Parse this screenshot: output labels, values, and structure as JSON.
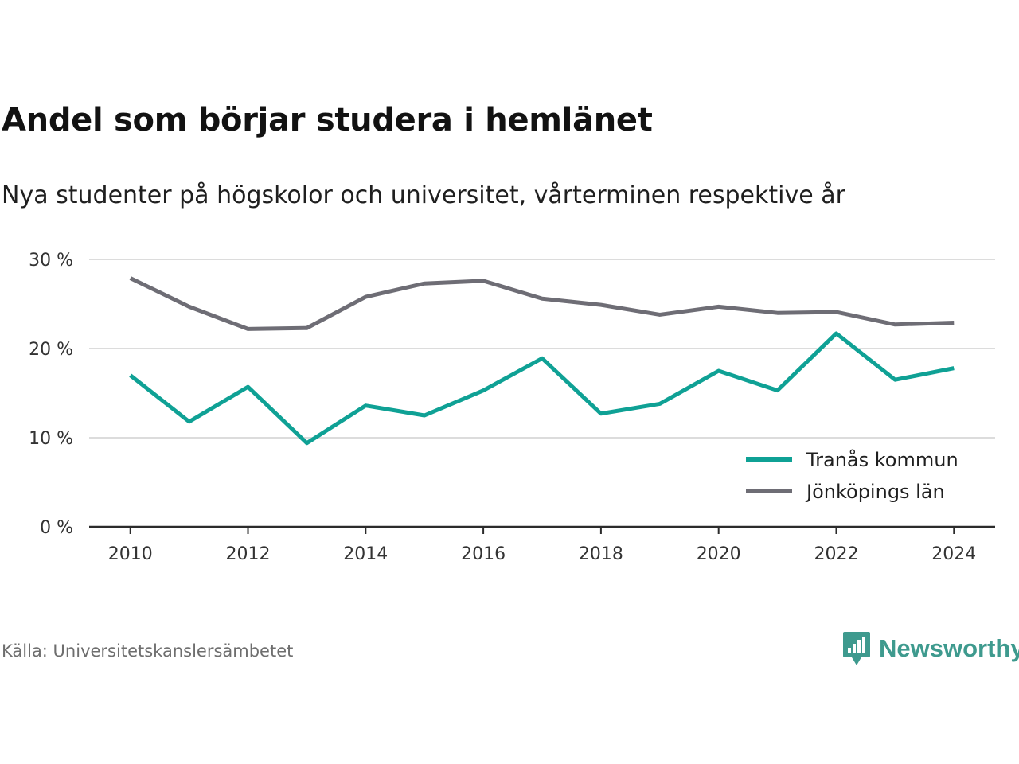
{
  "title": "Andel som börjar studera i hemlänet",
  "subtitle": "Nya studenter på högskolor och universitet, vårterminen respektive år",
  "source": "Källa: Universitetskanslersämbetet",
  "brand": {
    "name": "Newsworthy",
    "logo_icon": "newsworthy-bar-chart-bubble-icon",
    "color": "#3e9a8e"
  },
  "chart_data": {
    "type": "line",
    "x": [
      2010,
      2011,
      2012,
      2013,
      2014,
      2015,
      2016,
      2017,
      2018,
      2019,
      2020,
      2021,
      2022,
      2023,
      2024
    ],
    "x_ticks": [
      "2010",
      "2012",
      "2014",
      "2016",
      "2018",
      "2020",
      "2022",
      "2024"
    ],
    "xlim": [
      2009.3,
      2024.7
    ],
    "y_ticks": [
      "0 %",
      "10 %",
      "20 %",
      "30 %"
    ],
    "y_tick_values": [
      0,
      10,
      20,
      30
    ],
    "ylim": [
      0,
      30
    ],
    "grid": true,
    "legend_position": "bottom-right",
    "series": [
      {
        "name": "Tranås kommun",
        "color": "#0fa195",
        "values": [
          17.0,
          11.8,
          15.7,
          9.4,
          13.6,
          12.5,
          15.3,
          18.9,
          12.7,
          13.8,
          17.5,
          15.3,
          21.7,
          16.5,
          17.8
        ]
      },
      {
        "name": "Jönköpings län",
        "color": "#6e6d75",
        "values": [
          27.9,
          24.7,
          22.2,
          22.3,
          25.8,
          27.3,
          27.6,
          25.6,
          24.9,
          23.8,
          24.7,
          24.0,
          24.1,
          22.7,
          22.9
        ]
      }
    ]
  }
}
